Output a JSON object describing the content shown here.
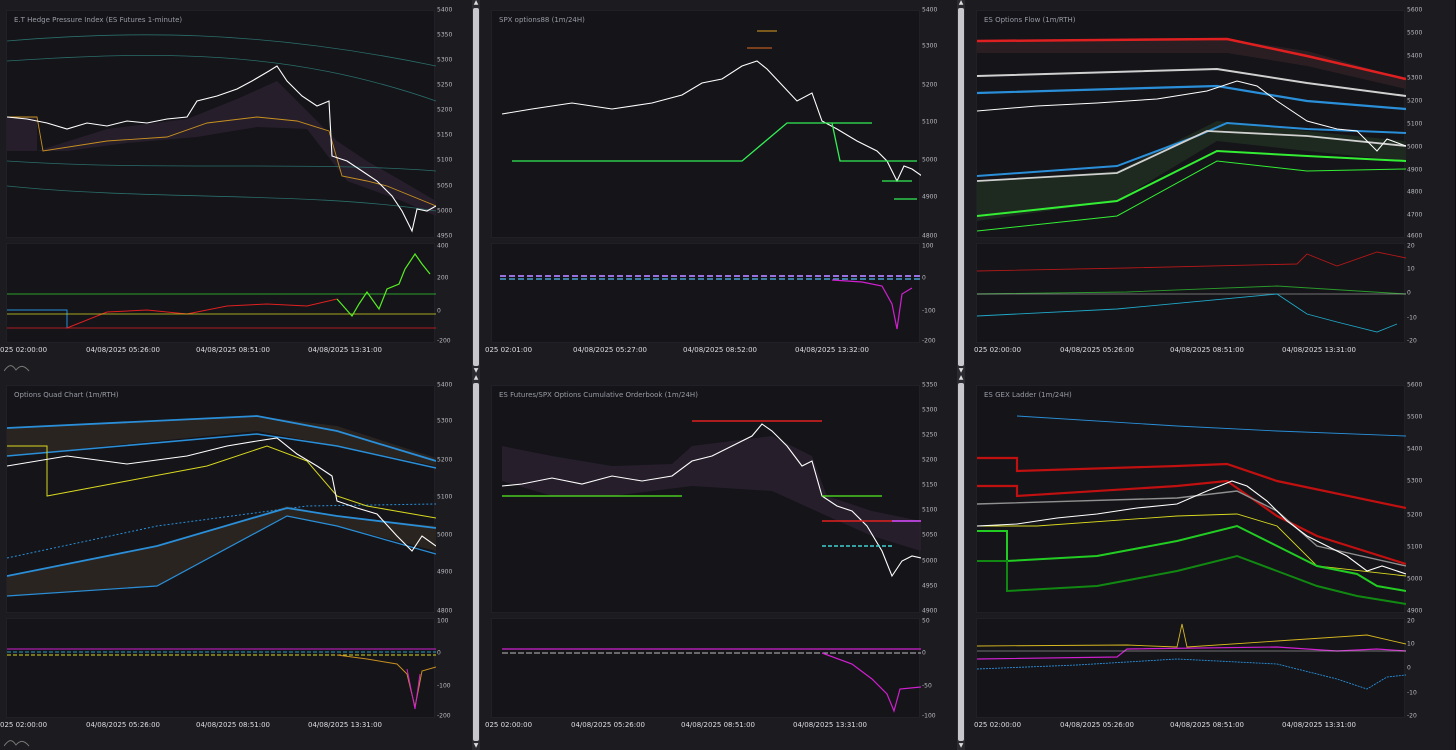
{
  "panels": [
    {
      "title": "E.T Hedge Pressure Index (ES Futures 1-minute)",
      "main_ticks": [
        "5400",
        "5350",
        "5300",
        "5250",
        "5200",
        "5150",
        "5100",
        "5050",
        "5000",
        "4950"
      ],
      "sub_ticks": [
        "400",
        "200",
        "0",
        "-200"
      ],
      "x_labels": [
        "025 02:00:00",
        "04/08/2025 05:26:00",
        "04/08/2025 08:51:00",
        "04/08/2025 13:31:00"
      ]
    },
    {
      "title": "SPX options88 (1m/24H)",
      "main_ticks": [
        "5400",
        "5300",
        "5200",
        "5100",
        "5000",
        "4900",
        "4800"
      ],
      "sub_ticks": [
        "100",
        "0",
        "-100",
        "-200"
      ],
      "x_labels": [
        "025 02:01:00",
        "04/08/2025 05:27:00",
        "04/08/2025 08:52:00",
        "04/08/2025 13:32:00"
      ]
    },
    {
      "title": "ES Options Flow (1m/RTH)",
      "main_ticks": [
        "5600",
        "5500",
        "5400",
        "5300",
        "5200",
        "5100",
        "5000",
        "4900",
        "4800",
        "4700",
        "4600"
      ],
      "sub_ticks": [
        "20",
        "10",
        "0",
        "-10",
        "-20"
      ],
      "x_labels": [
        "025 02:00:00",
        "04/08/2025 05:26:00",
        "04/08/2025 08:51:00",
        "04/08/2025 13:31:00"
      ]
    },
    {
      "title": "Options Quad Chart (1m/RTH)",
      "main_ticks": [
        "5400",
        "5300",
        "5200",
        "5100",
        "5000",
        "4900",
        "4800"
      ],
      "sub_ticks": [
        "100",
        "0",
        "-100",
        "-200"
      ],
      "x_labels": [
        "025 02:00:00",
        "04/08/2025 05:26:00",
        "04/08/2025 08:51:00",
        "04/08/2025 13:31:00"
      ]
    },
    {
      "title": "ES Futures/SPX Options Cumulative Orderbook (1m/24H)",
      "main_ticks": [
        "5350",
        "5300",
        "5250",
        "5200",
        "5150",
        "5100",
        "5050",
        "5000",
        "4950",
        "4900"
      ],
      "sub_ticks": [
        "50",
        "0",
        "-50",
        "-100"
      ],
      "x_labels": [
        "025 02:00:00",
        "04/08/2025 05:26:00",
        "04/08/2025 08:51:00",
        "04/08/2025 13:31:00"
      ]
    },
    {
      "title": "ES GEX Ladder (1m/24H)",
      "main_ticks": [
        "5600",
        "5500",
        "5400",
        "5300",
        "5200",
        "5100",
        "5000",
        "4900"
      ],
      "sub_ticks": [
        "20",
        "10",
        "0",
        "-10",
        "-20"
      ],
      "x_labels": [
        "025 02:00:00",
        "04/08/2025 05:26:00",
        "04/08/2025 08:51:00",
        "04/08/2025 13:31:00"
      ]
    }
  ],
  "colors": {
    "price": "#ffffff",
    "bg": "#141419",
    "grid": "#23232a",
    "red": "#e02020",
    "green": "#33ee33",
    "blue": "#2a8fd8",
    "yellow": "#d8d820",
    "magenta": "#d020d0",
    "teal": "#3aa0a0"
  }
}
